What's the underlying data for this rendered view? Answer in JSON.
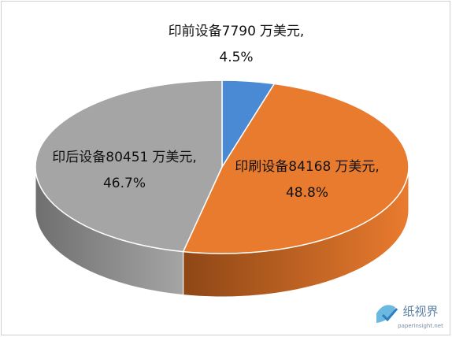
{
  "chart_data": {
    "type": "pie3d",
    "categories": [
      "印前设备",
      "印刷设备",
      "印后设备"
    ],
    "values": [
      7790,
      84168,
      80451
    ],
    "unit": "万美元,",
    "percent_labels": [
      "4.5%",
      "48.8%",
      "46.7%"
    ],
    "colors": [
      "#4a89d3",
      "#e97b2e",
      "#a5a5a5"
    ],
    "side_colors": [
      "#2f5f99",
      "#8e4716",
      "#6f6f6f"
    ]
  },
  "watermark": {
    "name": "纸视界",
    "url": "paperinsight.net"
  }
}
